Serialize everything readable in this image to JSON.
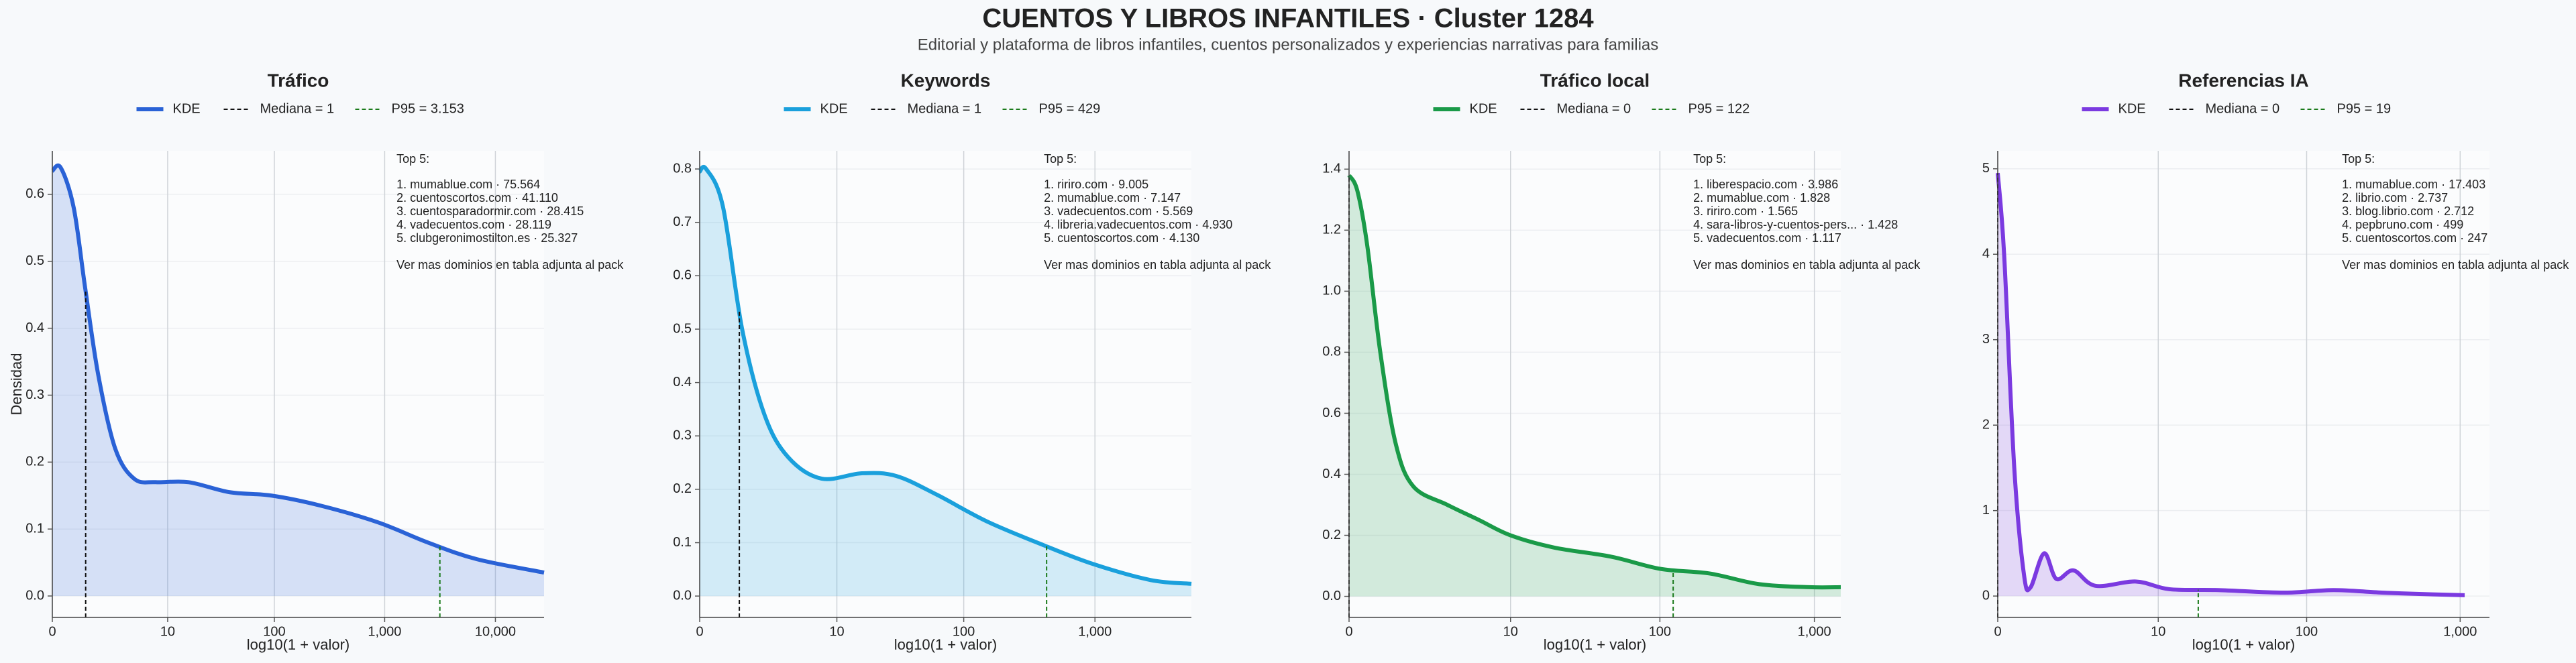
{
  "title": "CUENTOS Y LIBROS INFANTILES · Cluster 1284",
  "subtitle": "Editorial y plataforma de libros infantiles, cuentos personalizados y experiencias narrativas para familias",
  "chart_data": [
    {
      "type": "kde",
      "title": "Tráfico",
      "xlabel": "log10(1 + valor)",
      "ylabel": "Densidad",
      "xscale": "log1p",
      "grid": true,
      "xlim": [
        0,
        27500
      ],
      "xticks": [
        0,
        10,
        100,
        {
          "value": 1000,
          "label": "1,000"
        },
        {
          "value": 10000,
          "label": "10,000"
        }
      ],
      "ylim": [
        -0.032,
        0.665
      ],
      "yticks": [
        {
          "value": 0,
          "label": "0.0"
        },
        0.1,
        0.2,
        0.3,
        0.4,
        0.5,
        0.6
      ],
      "x": [
        0,
        0.19,
        0.56,
        0.98,
        1.6,
        2.7,
        4.5,
        7.6,
        16,
        39,
        94,
        263,
        870,
        2450,
        6800,
        27500
      ],
      "series": [
        {
          "name": "KDE",
          "color": "#2a62d6",
          "values": [
            0.635,
            0.64,
            0.58,
            0.46,
            0.33,
            0.22,
            0.175,
            0.17,
            0.17,
            0.155,
            0.15,
            0.135,
            0.11,
            0.08,
            0.055,
            0.035
          ]
        }
      ],
      "median": {
        "value": 1,
        "label": "Mediana = 1"
      },
      "p95": {
        "value": 3153,
        "label": "P95 = 3.153"
      },
      "annotation": {
        "title": "Top 5:",
        "lines": [
          "1. mumablue.com · 75.564",
          "2. cuentoscortos.com · 41.110",
          "3. cuentosparadormir.com · 28.415",
          "4. vadecuentos.com · 28.119",
          "5. clubgeronimostilton.es · 25.327"
        ],
        "note": "Ver mas dominios en tabla adjunta al pack"
      }
    },
    {
      "type": "kde",
      "title": "Keywords",
      "xlabel": "log10(1 + valor)",
      "xscale": "log1p",
      "grid": true,
      "xlim": [
        0,
        5400
      ],
      "xticks": [
        0,
        10,
        100,
        {
          "value": 1000,
          "label": "1,000"
        }
      ],
      "ylim": [
        -0.04,
        0.834
      ],
      "yticks": [
        {
          "value": 0,
          "label": "0.0"
        },
        0.1,
        0.2,
        0.3,
        0.4,
        0.5,
        0.6,
        0.7,
        0.8
      ],
      "x": [
        0,
        0.12,
        0.5,
        1.1,
        2.1,
        3.7,
        7.4,
        16,
        30,
        62,
        150,
        410,
        970,
        2650,
        5400
      ],
      "series": [
        {
          "name": "KDE",
          "color": "#1aa0dc",
          "values": [
            0.795,
            0.8,
            0.73,
            0.5,
            0.34,
            0.26,
            0.22,
            0.23,
            0.225,
            0.19,
            0.14,
            0.095,
            0.06,
            0.03,
            0.023
          ]
        }
      ],
      "median": {
        "value": 1,
        "label": "Mediana = 1"
      },
      "p95": {
        "value": 429,
        "label": "P95 = 429"
      },
      "annotation": {
        "title": "Top 5:",
        "lines": [
          "1. ririro.com · 9.005",
          "2. mumablue.com · 7.147",
          "3. vadecuentos.com · 5.569",
          "4. libreria.vadecuentos.com · 4.930",
          "5. cuentoscortos.com · 4.130"
        ],
        "note": "Ver mas dominios en tabla adjunta al pack"
      }
    },
    {
      "type": "kde",
      "title": "Tráfico local",
      "xlabel": "log10(1 + valor)",
      "xscale": "log1p",
      "grid": true,
      "xlim": [
        0,
        1480
      ],
      "xticks": [
        0,
        10,
        100,
        {
          "value": 1000,
          "label": "1,000"
        }
      ],
      "ylim": [
        -0.069,
        1.46
      ],
      "yticks": [
        {
          "value": 0,
          "label": "0.0"
        },
        0.2,
        0.4,
        0.6,
        0.8,
        {
          "value": 1,
          "label": "1.0"
        },
        1.2,
        1.4
      ],
      "x": [
        0,
        0.13,
        0.31,
        0.59,
        1.0,
        1.6,
        3.3,
        5.9,
        10,
        20,
        48,
        101,
        210,
        440,
        930,
        1480
      ],
      "series": [
        {
          "name": "KDE",
          "color": "#1a9a48",
          "values": [
            1.38,
            1.33,
            1.15,
            0.8,
            0.5,
            0.36,
            0.3,
            0.25,
            0.2,
            0.16,
            0.13,
            0.09,
            0.075,
            0.04,
            0.03,
            0.03
          ]
        }
      ],
      "median": {
        "value": 0,
        "label": "Mediana = 0"
      },
      "p95": {
        "value": 122,
        "label": "P95 = 122"
      },
      "annotation": {
        "title": "Top 5:",
        "lines": [
          "1. liberespacio.com · 3.986",
          "2. mumablue.com · 1.828",
          "3. ririro.com · 1.565",
          "4. sara-libros-y-cuentos-pers... · 1.428",
          "5. vadecuentos.com · 1.117"
        ],
        "note": "Ver mas dominios en tabla adjunta al pack"
      }
    },
    {
      "type": "kde",
      "title": "Referencias IA",
      "xlabel": "log10(1 + valor)",
      "xscale": "log1p",
      "grid": true,
      "xlim": [
        0,
        1550
      ],
      "xticks": [
        0,
        10,
        100,
        {
          "value": 1000,
          "label": "1,000"
        }
      ],
      "ylim": [
        -0.25,
        5.21
      ],
      "yticks": [
        0,
        1,
        2,
        3,
        4,
        5
      ],
      "x": [
        0,
        0.1,
        0.28,
        0.48,
        0.63,
        1.0,
        1.4,
        2.1,
        3.3,
        6.9,
        12,
        26,
        71,
        150,
        310,
        660,
        1070
      ],
      "series": [
        {
          "name": "KDE",
          "color": "#7b3ae0",
          "values": [
            4.95,
            4.0,
            1.5,
            0.25,
            0.1,
            0.5,
            0.2,
            0.3,
            0.12,
            0.17,
            0.08,
            0.07,
            0.04,
            0.07,
            0.04,
            0.02,
            0.01
          ]
        }
      ],
      "median": {
        "value": 0,
        "label": "Mediana = 0"
      },
      "p95": {
        "value": 19,
        "label": "P95 = 19"
      },
      "annotation": {
        "title": "Top 5:",
        "lines": [
          "1. mumablue.com · 17.403",
          "2. librio.com · 2.737",
          "3. blog.librio.com · 2.712",
          "4. pepbruno.com · 499",
          "5. cuentoscortos.com · 247"
        ],
        "note": "Ver mas dominios en tabla adjunta al pack"
      }
    }
  ]
}
